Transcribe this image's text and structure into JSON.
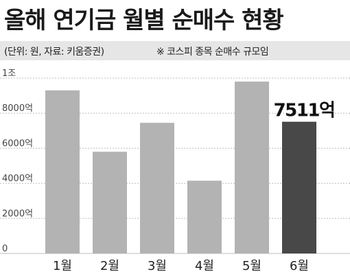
{
  "title": "올해 연기금 월별 순매수 현황",
  "source": "(단위: 원, 자료: 키움증권)",
  "note": "※ 코스피 종목 순매수 규모임",
  "colors": {
    "bar": "#b3b3b3",
    "highlight": "#484848",
    "grid": "#bdbdbd",
    "header_band": "#e6e6e6"
  },
  "chart_data": {
    "type": "bar",
    "categories": [
      "1월",
      "2월",
      "3월",
      "4월",
      "5월",
      "6월"
    ],
    "values": [
      9300,
      5800,
      7450,
      4150,
      9800,
      7511
    ],
    "unit": "억",
    "ylim": [
      0,
      10000
    ],
    "yticks": [
      {
        "value": 0,
        "label": "0"
      },
      {
        "value": 2000,
        "label": "2000억"
      },
      {
        "value": 4000,
        "label": "4000억"
      },
      {
        "value": 6000,
        "label": "6000억"
      },
      {
        "value": 8000,
        "label": "8000억"
      },
      {
        "value": 10000,
        "label": "1조"
      }
    ],
    "highlight_index": 5,
    "data_labels": [
      {
        "index": 5,
        "text": "7511억"
      }
    ],
    "grid": true,
    "grid_style": "dotted"
  }
}
